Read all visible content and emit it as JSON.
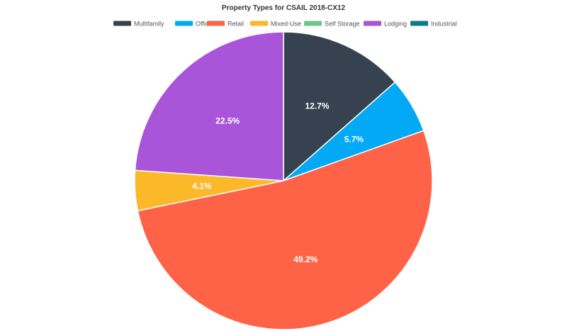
{
  "chart_data": {
    "type": "pie",
    "title": "Property Types for CSAIL 2018-CX12",
    "legend_position": "top",
    "slices": [
      {
        "name": "Multifamily",
        "value": 12.7,
        "label": "12.7%",
        "color": "#36424f"
      },
      {
        "name": "Office",
        "value": 5.7,
        "label": "5.7%",
        "color": "#03a9f4"
      },
      {
        "name": "Retail",
        "value": 49.2,
        "label": "49.2%",
        "color": "#ff6347"
      },
      {
        "name": "Mixed-Use",
        "value": 4.1,
        "label": "4.1%",
        "color": "#fbb829"
      },
      {
        "name": "Self Storage",
        "value": 0,
        "label": "",
        "color": "#6fc68a"
      },
      {
        "name": "Lodging",
        "value": 22.5,
        "label": "22.5%",
        "color": "#a855d9"
      },
      {
        "name": "Industrial",
        "value": 0,
        "label": "",
        "color": "#0e7c86"
      }
    ]
  }
}
